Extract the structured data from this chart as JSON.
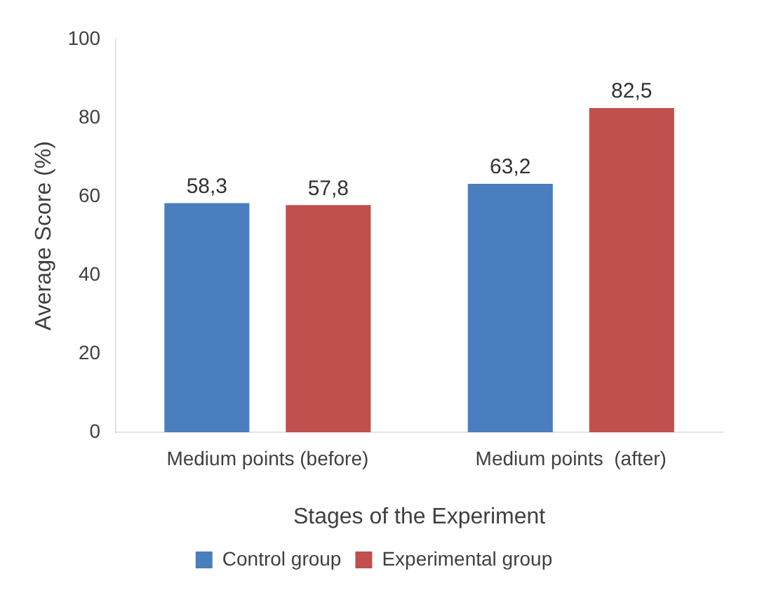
{
  "chart_data": {
    "type": "bar",
    "xlabel": "Stages of the Experiment",
    "ylabel": "Average Score (%)",
    "categories": [
      "Medium points (before)",
      "Medium points  (after)"
    ],
    "series": [
      {
        "name": "Control group",
        "color": "#4a7ebf",
        "values": [
          58.3,
          63.2
        ],
        "value_labels": [
          "58,3",
          "63,2"
        ]
      },
      {
        "name": "Experimental group",
        "color": "#c0504d",
        "values": [
          57.8,
          82.5
        ],
        "value_labels": [
          "57,8",
          "82,5"
        ]
      }
    ],
    "ylim": [
      0,
      100
    ],
    "yticks": [
      0,
      20,
      40,
      60,
      80,
      100
    ],
    "grid": false,
    "legend": "bottom"
  }
}
